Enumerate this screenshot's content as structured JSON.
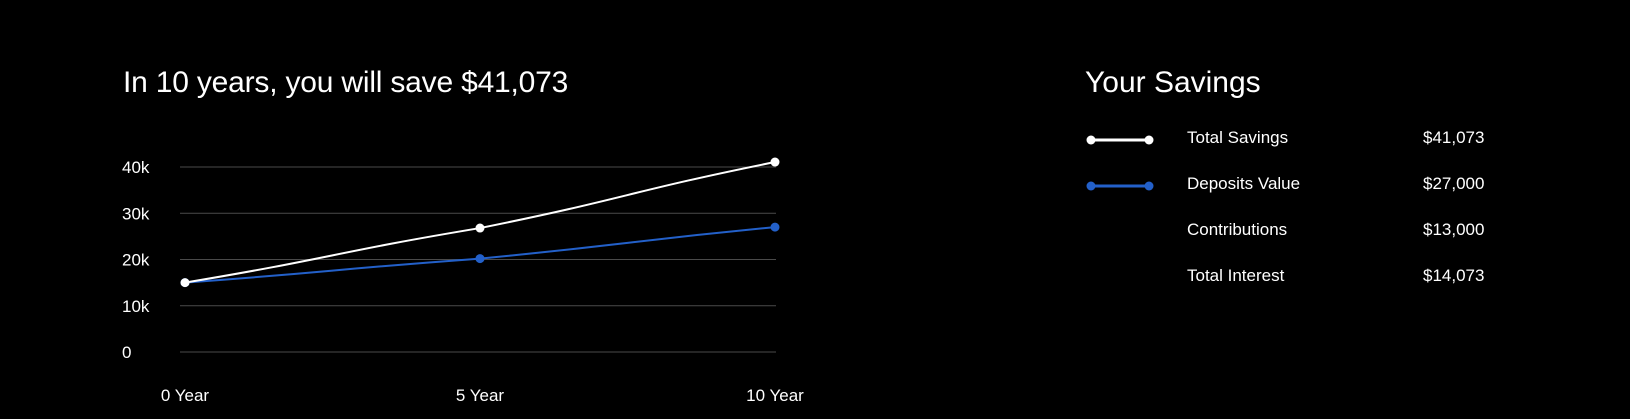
{
  "chart_data": {
    "type": "line",
    "title": "In 10 years, you will save $41,073",
    "categories": [
      "0 Year",
      "5 Year",
      "10 Year"
    ],
    "x": [
      0,
      5,
      10
    ],
    "ylim": [
      0,
      40000
    ],
    "yticks": [
      0,
      10000,
      20000,
      30000,
      40000
    ],
    "ytick_labels": [
      "0",
      "10k",
      "20k",
      "30k",
      "40k"
    ],
    "grid": true,
    "series": [
      {
        "name": "Total Savings",
        "values": [
          15000,
          26800,
          41073
        ],
        "color": "#ffffff"
      },
      {
        "name": "Deposits Value",
        "values": [
          15000,
          20200,
          27000
        ],
        "color": "#2360c9"
      }
    ]
  },
  "summary": {
    "title": "Your Savings",
    "rows": [
      {
        "label": "Total Savings",
        "value": "$41,073",
        "swatch": "line",
        "color": "#ffffff"
      },
      {
        "label": "Deposits Value",
        "value": "$27,000",
        "swatch": "line",
        "color": "#2360c9"
      },
      {
        "label": "Contributions",
        "value": "$13,000",
        "swatch": "none"
      },
      {
        "label": "Total Interest",
        "value": "$14,073",
        "swatch": "none"
      }
    ]
  }
}
